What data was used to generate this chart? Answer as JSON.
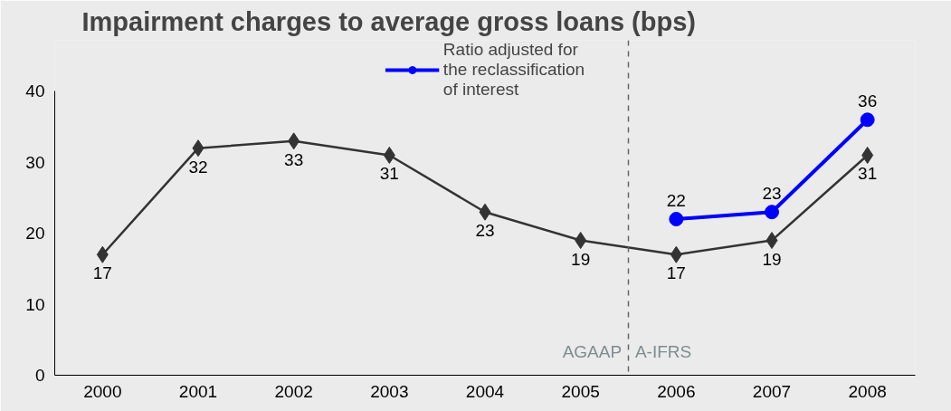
{
  "chart_data": {
    "type": "line",
    "title": "Impairment charges to average gross loans (bps)",
    "categories": [
      "2000",
      "2001",
      "2002",
      "2003",
      "2004",
      "2005",
      "2006",
      "2007",
      "2008"
    ],
    "series": [
      {
        "color": "#333333",
        "marker": "diamond",
        "values": [
          17,
          32,
          33,
          31,
          23,
          19,
          17,
          19,
          31
        ]
      },
      {
        "name": "Ratio adjusted for the reclassification of interest",
        "color": "#0000ff",
        "marker": "circle",
        "values": [
          null,
          null,
          null,
          null,
          null,
          null,
          22,
          23,
          36
        ]
      }
    ],
    "ylim": [
      0,
      40
    ],
    "yticks": [
      0,
      10,
      20,
      30,
      40
    ],
    "grid": false,
    "legend": "top",
    "data_labels": true,
    "annotations": [
      "AGAAP",
      "A-IFRS"
    ]
  }
}
